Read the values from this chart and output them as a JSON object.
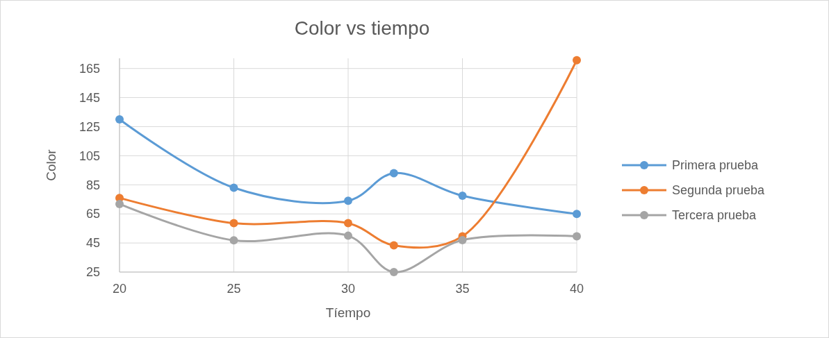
{
  "chart_data": {
    "type": "line",
    "title": "Color vs tiempo",
    "xlabel": "Tíempo",
    "ylabel": "Color",
    "x": [
      20,
      25,
      30,
      32,
      35,
      40
    ],
    "series": [
      {
        "name": "Primera prueba",
        "color": "#5b9bd5",
        "values": [
          130,
          83,
          74,
          93,
          77.5,
          65
        ]
      },
      {
        "name": "Segunda prueba",
        "color": "#ed7d31",
        "values": [
          76,
          58.6,
          58.6,
          43.4,
          49.6,
          170.7
        ]
      },
      {
        "name": "Tercera prueba",
        "color": "#a5a5a5",
        "values": [
          71.8,
          46.8,
          50,
          25,
          47,
          49.6
        ]
      }
    ],
    "xlim": [
      20,
      40
    ],
    "xticks": [
      20,
      25,
      30,
      35,
      40
    ],
    "ylim": [
      25,
      172
    ],
    "yticks": [
      25,
      45,
      65,
      85,
      105,
      125,
      145,
      165
    ],
    "grid": true,
    "legend": "right",
    "marker": "circle",
    "line_style": "solid"
  }
}
